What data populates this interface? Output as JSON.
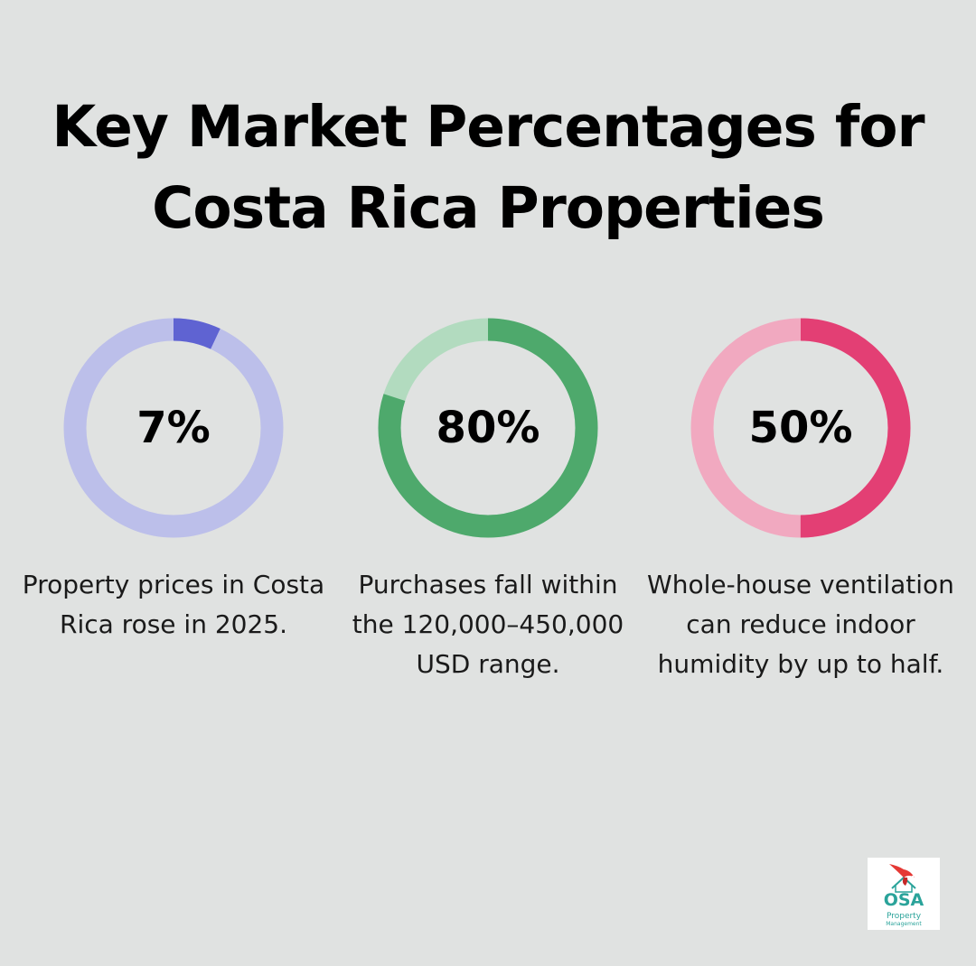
{
  "title_line1": "Key Market Percentages for",
  "title_line2": "Costa Rica Properties",
  "chart_data": [
    {
      "type": "pie",
      "value": 7,
      "label": "7%",
      "description": "Property prices in Costa Rica rose in 2025.",
      "colors": {
        "filled": "#5f63d2",
        "track": "#bcbfea"
      }
    },
    {
      "type": "pie",
      "value": 80,
      "label": "80%",
      "description": "Purchases fall within the 120,000–450,000 USD range.",
      "colors": {
        "filled": "#4ea96c",
        "track": "#b2dbbf"
      }
    },
    {
      "type": "pie",
      "value": 50,
      "label": "50%",
      "description": "Whole-house ventilation can reduce indoor humidity by up to half.",
      "colors": {
        "filled": "#e33f74",
        "track": "#f1a9c0"
      }
    }
  ],
  "logo": {
    "name": "OSA",
    "line1": "Property",
    "line2": "Management",
    "icon": "parrot-house-icon",
    "colors": {
      "text": "#2aa39a",
      "bird": "#e53935"
    }
  }
}
